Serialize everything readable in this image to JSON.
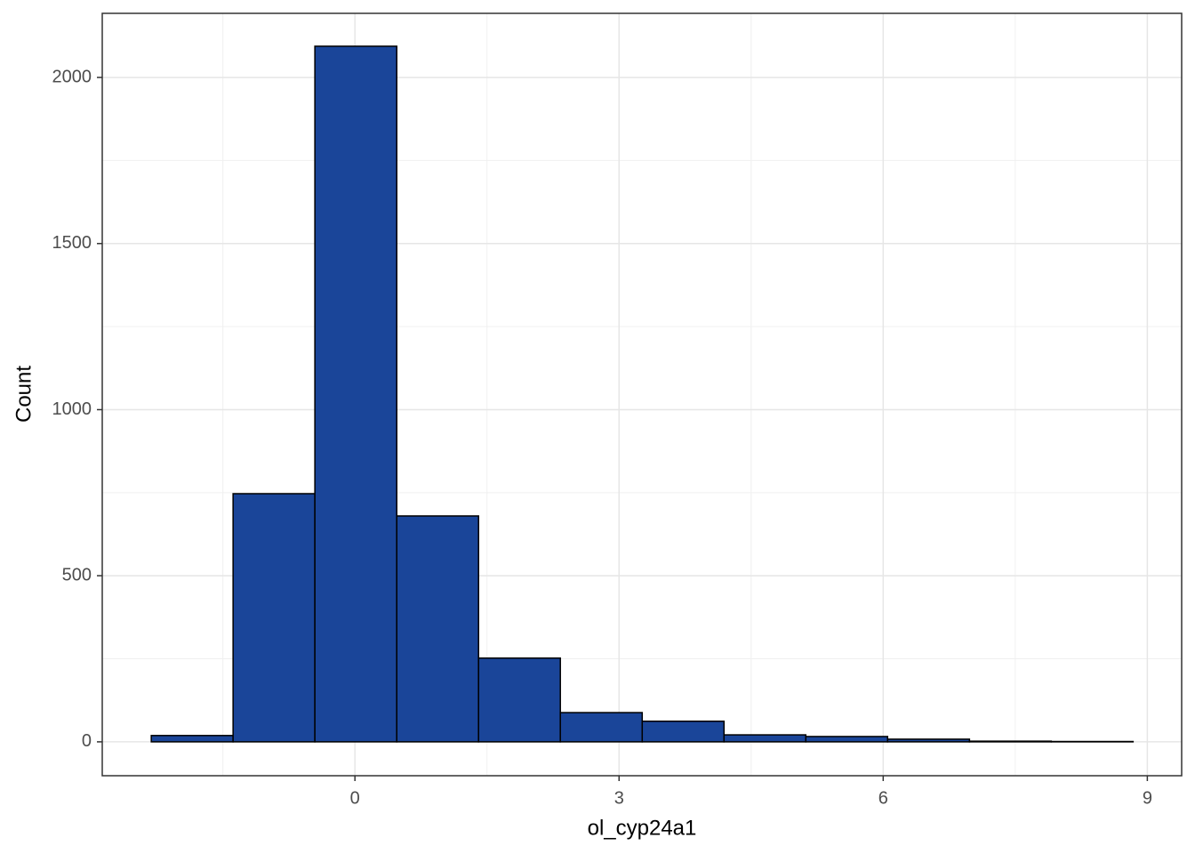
{
  "chart_data": {
    "type": "histogram",
    "x_label": "ol_cyp24a1",
    "y_label": "Count",
    "bins": [
      -2.313,
      -1.384,
      -0.455,
      0.475,
      1.404,
      2.333,
      3.263,
      4.192,
      5.121,
      6.05,
      6.98,
      7.909,
      8.838
    ],
    "values": [
      19,
      747,
      2094,
      680,
      252,
      88,
      62,
      21,
      16,
      8,
      2,
      1
    ],
    "color": "#1a4599",
    "edge_color": "#000000",
    "xlim": [
      -2.87,
      9.39
    ],
    "ylim": [
      -102,
      2193
    ],
    "xticks": [
      0,
      3,
      6,
      9
    ],
    "yticks": [
      0,
      500,
      1000,
      1500,
      2000
    ],
    "minor_xticks": [
      -1.5,
      1.5,
      4.5,
      7.5
    ],
    "minor_yticks": [
      250,
      750,
      1250,
      1750
    ],
    "grid": true
  }
}
